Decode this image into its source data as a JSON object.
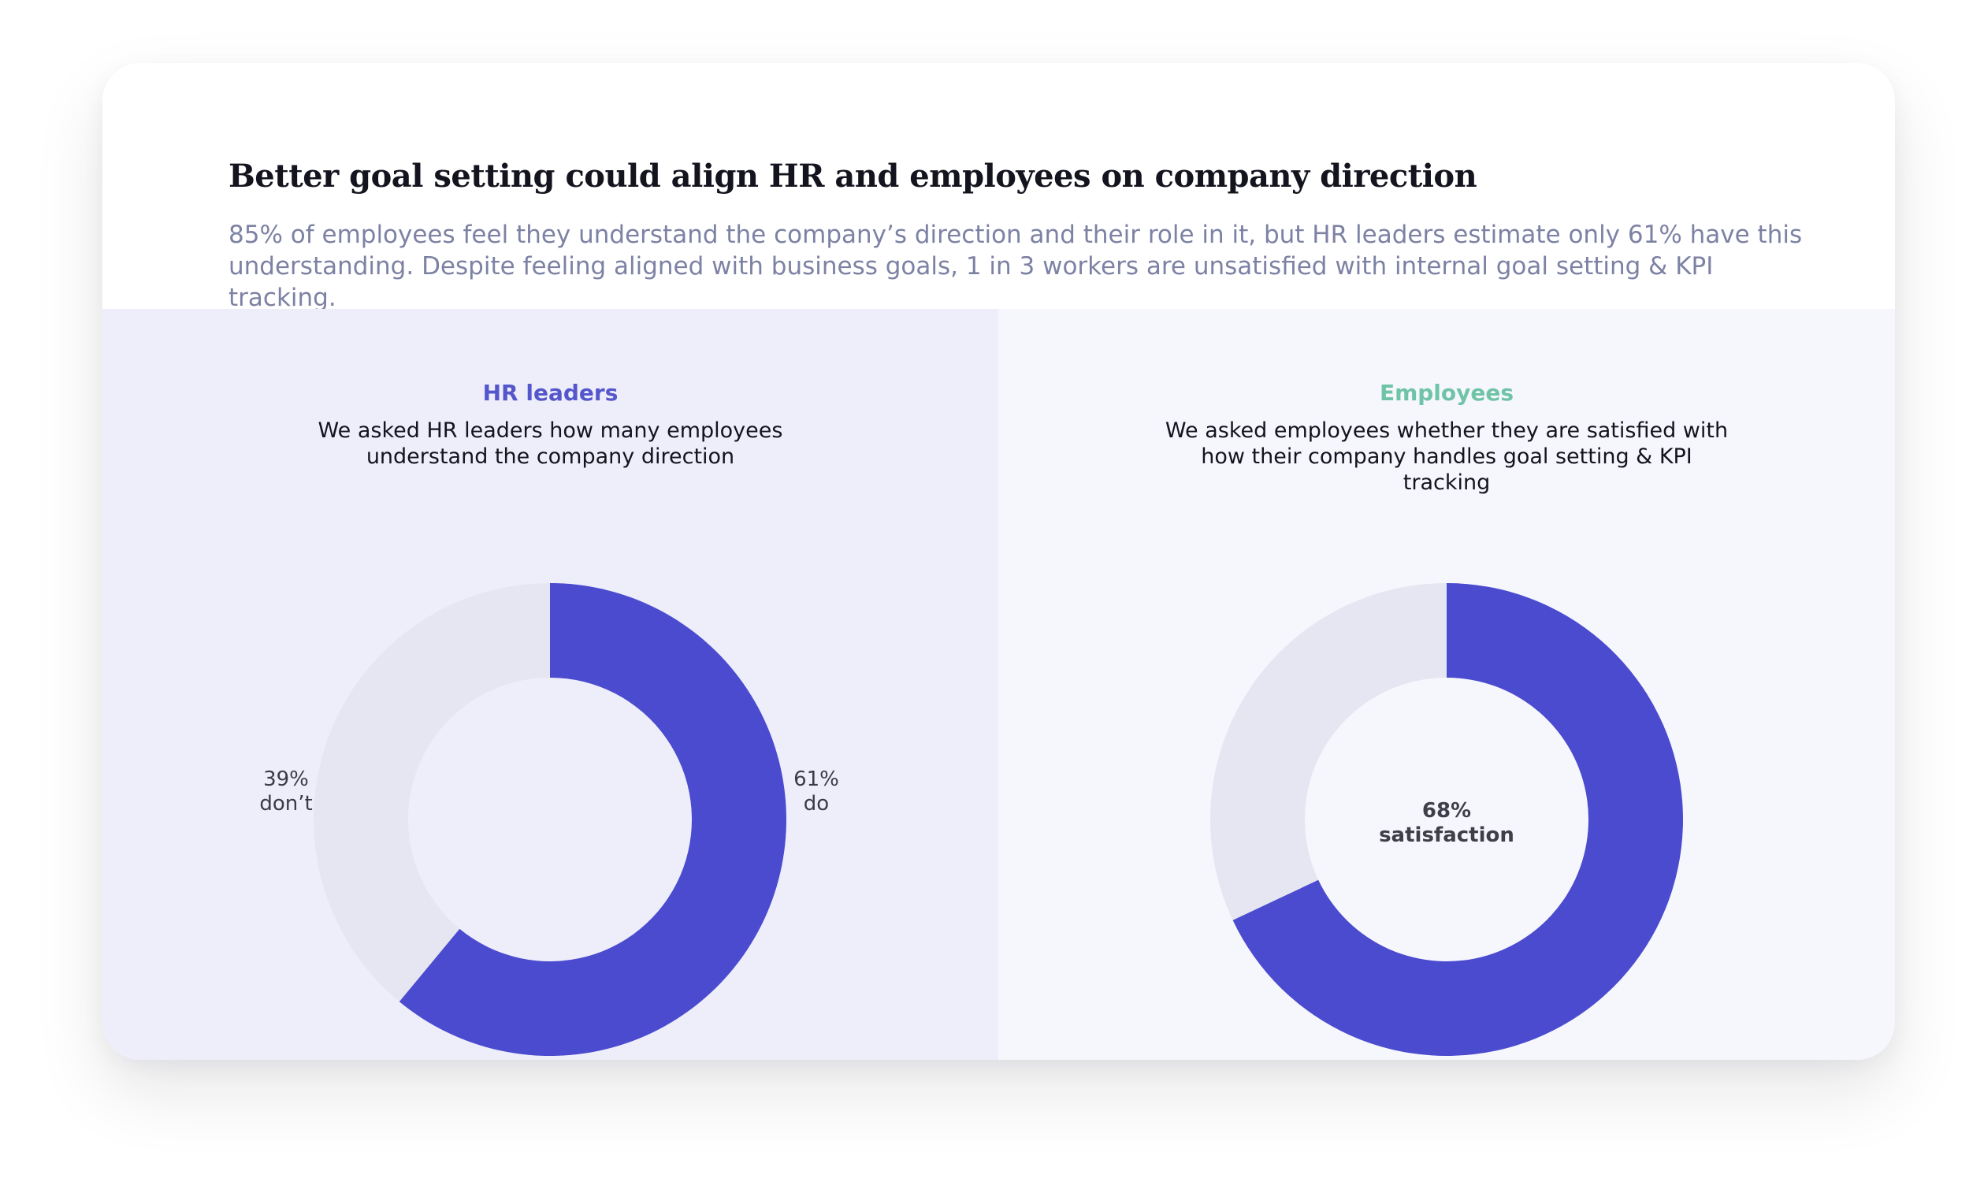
{
  "header": {
    "title": "Better goal setting could align HR and employees on company direction",
    "subtitle": "85% of employees feel they understand the company’s direction and their role in it, but HR leaders estimate only 61% have this understanding. Despite feeling aligned with business goals, 1 in 3 workers are unsatisfied with internal goal setting & KPI tracking."
  },
  "colors": {
    "accent": "#4b4bcf",
    "track": "#e6e6f3",
    "hr_label": "#5457cc",
    "employees_label": "#6fc3a7",
    "left_panel_bg": "#eeeefb",
    "right_panel_bg": "#f6f7fd"
  },
  "panels": [
    {
      "label": "HR leaders",
      "question": "We asked HR leaders how many employees understand the company direction",
      "filled_label": {
        "value": "61%",
        "text": "do"
      },
      "remainder_label": {
        "value": "39%",
        "text": "don’t"
      }
    },
    {
      "label": "Employees",
      "question": "We asked employees whether they are satisfied with how their company handles goal setting & KPI tracking",
      "center_label": {
        "value": "68%",
        "text": "satisfaction"
      }
    }
  ],
  "chart_data": [
    {
      "type": "pie",
      "style": "donut",
      "categories": [
        "do",
        "don’t"
      ],
      "values": [
        61,
        39
      ],
      "unit": "%",
      "title": "HR leaders"
    },
    {
      "type": "pie",
      "style": "donut",
      "categories": [
        "satisfaction",
        ""
      ],
      "values": [
        68,
        32
      ],
      "unit": "%",
      "title": "Employees"
    }
  ]
}
